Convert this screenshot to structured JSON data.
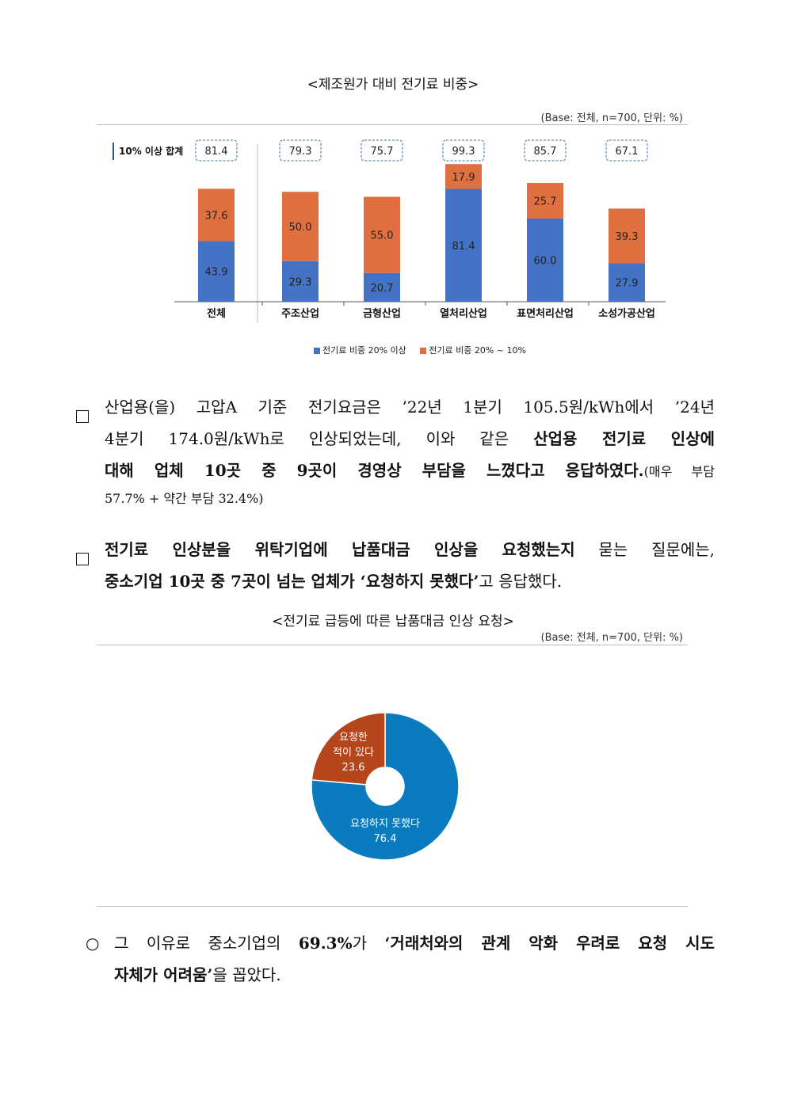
{
  "chart1": {
    "title": "<제조원가 대비 전기료 비중>",
    "base_note": "(Base: 전체, n=700, 단위: %)",
    "sum_label": "10% 이상 합계",
    "legend": [
      "전기료 비중 20% 이상",
      "전기료 비중 20% ~ 10%"
    ],
    "colors": {
      "over20": "#4472c4",
      "10to20": "#e07040"
    },
    "chart_data": {
      "type": "bar",
      "stacked": true,
      "categories": [
        "전체",
        "주조산업",
        "금형산업",
        "열처리산업",
        "표면처리산업",
        "소성가공산업"
      ],
      "series": [
        {
          "name": "전기료 비중 20% 이상",
          "values": [
            43.9,
            29.3,
            20.7,
            81.4,
            60.0,
            27.9
          ]
        },
        {
          "name": "전기료 비중 20% ~ 10%",
          "values": [
            37.6,
            50.0,
            55.0,
            17.9,
            25.7,
            39.3
          ]
        }
      ],
      "totals": [
        81.4,
        79.3,
        75.7,
        99.3,
        85.7,
        67.1
      ],
      "ylim": [
        0,
        100
      ]
    },
    "value_labels": {
      "over20": [
        "43.9",
        "29.3",
        "20.7",
        "81.4",
        "60.0",
        "27.9"
      ],
      "range": [
        "37.6",
        "50.0",
        "55.0",
        "17.9",
        "25.7",
        "39.3"
      ],
      "totals": [
        "81.4",
        "79.3",
        "75.7",
        "99.3",
        "85.7",
        "67.1"
      ]
    }
  },
  "para1": {
    "line1": "산업용(을) 고압A 기준 전기요금은 ’22년 1분기 105.5원/kWh에서 ’24년",
    "line2_plain": "4분기 174.0원/kWh로 인상되었는데, 이와 같은 ",
    "line2_bold": "산업용 전기료 인상에",
    "line3_bold": "대해 업체 10곳 중 9곳이 경영상 부담을 느꼈다고 응답하였다.",
    "line3_small": "(매우 부담",
    "line4_small": "57.7% + 약간 부담 32.4%)"
  },
  "para2": {
    "line1_bold": "전기료 인상분을 위탁기업에 납품대금 인상을 요청했는지",
    "line1_plain": " 묻는 질문에는,",
    "line2_bold": "중소기업 10곳 중 7곳이 넘는 업체가 ‘요청하지 못했다’",
    "line2_plain": "고 응답했다."
  },
  "chart2": {
    "title": "<전기료 급등에 따른 납품대금 인상 요청>",
    "base_note": "(Base: 전체, n=700, 단위: %)",
    "colors": {
      "not_requested": "#0a7bbf",
      "requested": "#b5451b"
    },
    "chart_data": {
      "type": "pie",
      "donut": true,
      "slices": [
        {
          "label": "요청하지 못했다",
          "value": 76.4
        },
        {
          "label": "요청한 적이 있다",
          "value": 23.6
        }
      ]
    },
    "labels": {
      "requested_line1": "요청한",
      "requested_line2": "적이 있다",
      "requested_value": "23.6",
      "not_requested_line1": "요청하지 못했다",
      "not_requested_value": "76.4"
    }
  },
  "para3": {
    "bullet": "○",
    "line1_plain1": "그 이유로 중소기업의 ",
    "line1_bold": "69.3%",
    "line1_plain2": "가 ",
    "line1_bold2": "‘거래처와의 관계 악화 우려로 요청 시도",
    "line2_bold": "자체가 어려움’",
    "line2_plain": "을 꼽았다."
  }
}
